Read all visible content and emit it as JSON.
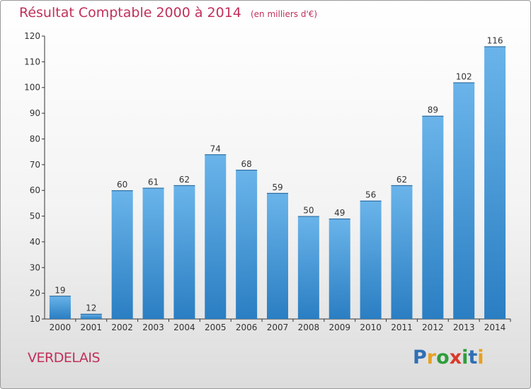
{
  "title": "Résultat Comptable 2000 à 2014",
  "subtitle": "(en milliers d'€)",
  "place": "VERDELAIS",
  "logo": {
    "letters": [
      "P",
      "r",
      "o",
      "x",
      "i",
      "t",
      "i"
    ],
    "colors": [
      "#2f6fb5",
      "#e8a020",
      "#2f9d3a",
      "#d83a2a",
      "#2f9d3a",
      "#2f6fb5",
      "#e8a020"
    ]
  },
  "colors": {
    "bar_top": "#6ab4ea",
    "bar_bottom": "#2a7ec2",
    "title": "#c0305a"
  },
  "chart_data": {
    "type": "bar",
    "categories": [
      "2000",
      "2001",
      "2002",
      "2003",
      "2004",
      "2005",
      "2006",
      "2007",
      "2008",
      "2009",
      "2010",
      "2011",
      "2012",
      "2013",
      "2014"
    ],
    "values": [
      19,
      12,
      60,
      61,
      62,
      74,
      68,
      59,
      50,
      49,
      56,
      62,
      89,
      102,
      116
    ],
    "ylim": [
      10,
      120
    ],
    "yticks": [
      10,
      20,
      30,
      40,
      50,
      60,
      70,
      80,
      90,
      100,
      110,
      120
    ],
    "grid": false,
    "data_labels": true
  }
}
